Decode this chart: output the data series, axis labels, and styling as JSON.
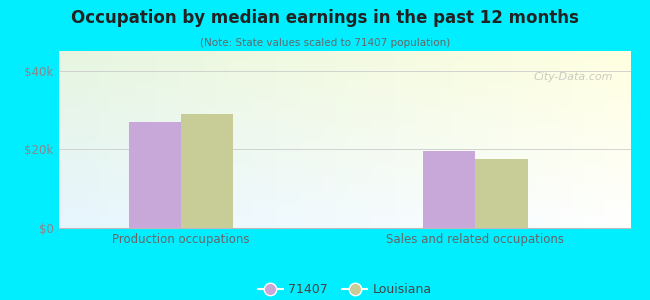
{
  "title": "Occupation by median earnings in the past 12 months",
  "subtitle": "(Note: State values scaled to 71407 population)",
  "categories": [
    "Production occupations",
    "Sales and related occupations"
  ],
  "values_71407": [
    27000,
    19500
  ],
  "values_louisiana": [
    29000,
    17500
  ],
  "color_71407": "#c8a8d8",
  "color_louisiana": "#c8cc96",
  "ylim": [
    0,
    45000
  ],
  "yticks": [
    0,
    20000,
    40000
  ],
  "ytick_labels": [
    "$0",
    "$20k",
    "$40k"
  ],
  "background_outer": "#00eeff",
  "legend_label_71407": "71407",
  "legend_label_louisiana": "Louisiana",
  "bar_width": 0.32,
  "group_positions": [
    0.95,
    2.75
  ],
  "watermark": "City-Data.com"
}
